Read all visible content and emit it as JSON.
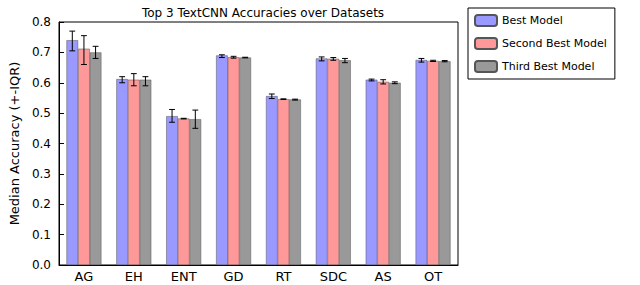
{
  "chart_data": {
    "type": "bar",
    "title": "Top 3 TextCNN Accuracies over Datasets",
    "y_label": "Median Accuracy (+-IQR)",
    "categories": [
      "AG",
      "EH",
      "ENT",
      "GD",
      "RT",
      "SDC",
      "AS",
      "OT"
    ],
    "series": [
      {
        "name": "Best Model",
        "color": "#9999ff",
        "values": [
          0.74,
          0.612,
          0.49,
          0.69,
          0.556,
          0.68,
          0.61,
          0.675
        ],
        "errors": [
          [
            0.705,
            0.77
          ],
          [
            0.6,
            0.62
          ],
          [
            0.47,
            0.512
          ],
          [
            0.683,
            0.692
          ],
          [
            0.548,
            0.563
          ],
          [
            0.672,
            0.685
          ],
          [
            0.606,
            0.612
          ],
          [
            0.668,
            0.68
          ]
        ]
      },
      {
        "name": "Second Best Model",
        "color": "#ff9999",
        "values": [
          0.712,
          0.61,
          0.482,
          0.684,
          0.546,
          0.679,
          0.603,
          0.672
        ],
        "errors": [
          [
            0.66,
            0.755
          ],
          [
            0.59,
            0.63
          ],
          [
            0.481,
            0.483
          ],
          [
            0.681,
            0.687
          ],
          [
            0.545,
            0.547
          ],
          [
            0.674,
            0.683
          ],
          [
            0.596,
            0.61
          ],
          [
            0.67,
            0.674
          ]
        ]
      },
      {
        "name": "Third Best Model",
        "color": "#999999",
        "values": [
          0.7,
          0.61,
          0.48,
          0.683,
          0.545,
          0.674,
          0.6,
          0.671
        ],
        "errors": [
          [
            0.68,
            0.72
          ],
          [
            0.59,
            0.62
          ],
          [
            0.45,
            0.51
          ],
          [
            0.682,
            0.684
          ],
          [
            0.543,
            0.546
          ],
          [
            0.666,
            0.68
          ],
          [
            0.597,
            0.603
          ],
          [
            0.669,
            0.673
          ]
        ]
      }
    ],
    "ylim": [
      0,
      0.8
    ],
    "yticks": [
      {
        "value": 0,
        "label": "0.0"
      },
      0.1,
      0.2,
      0.3,
      0.4,
      0.5,
      0.6,
      0.7,
      0.8
    ],
    "legend": "right",
    "grid": false
  }
}
